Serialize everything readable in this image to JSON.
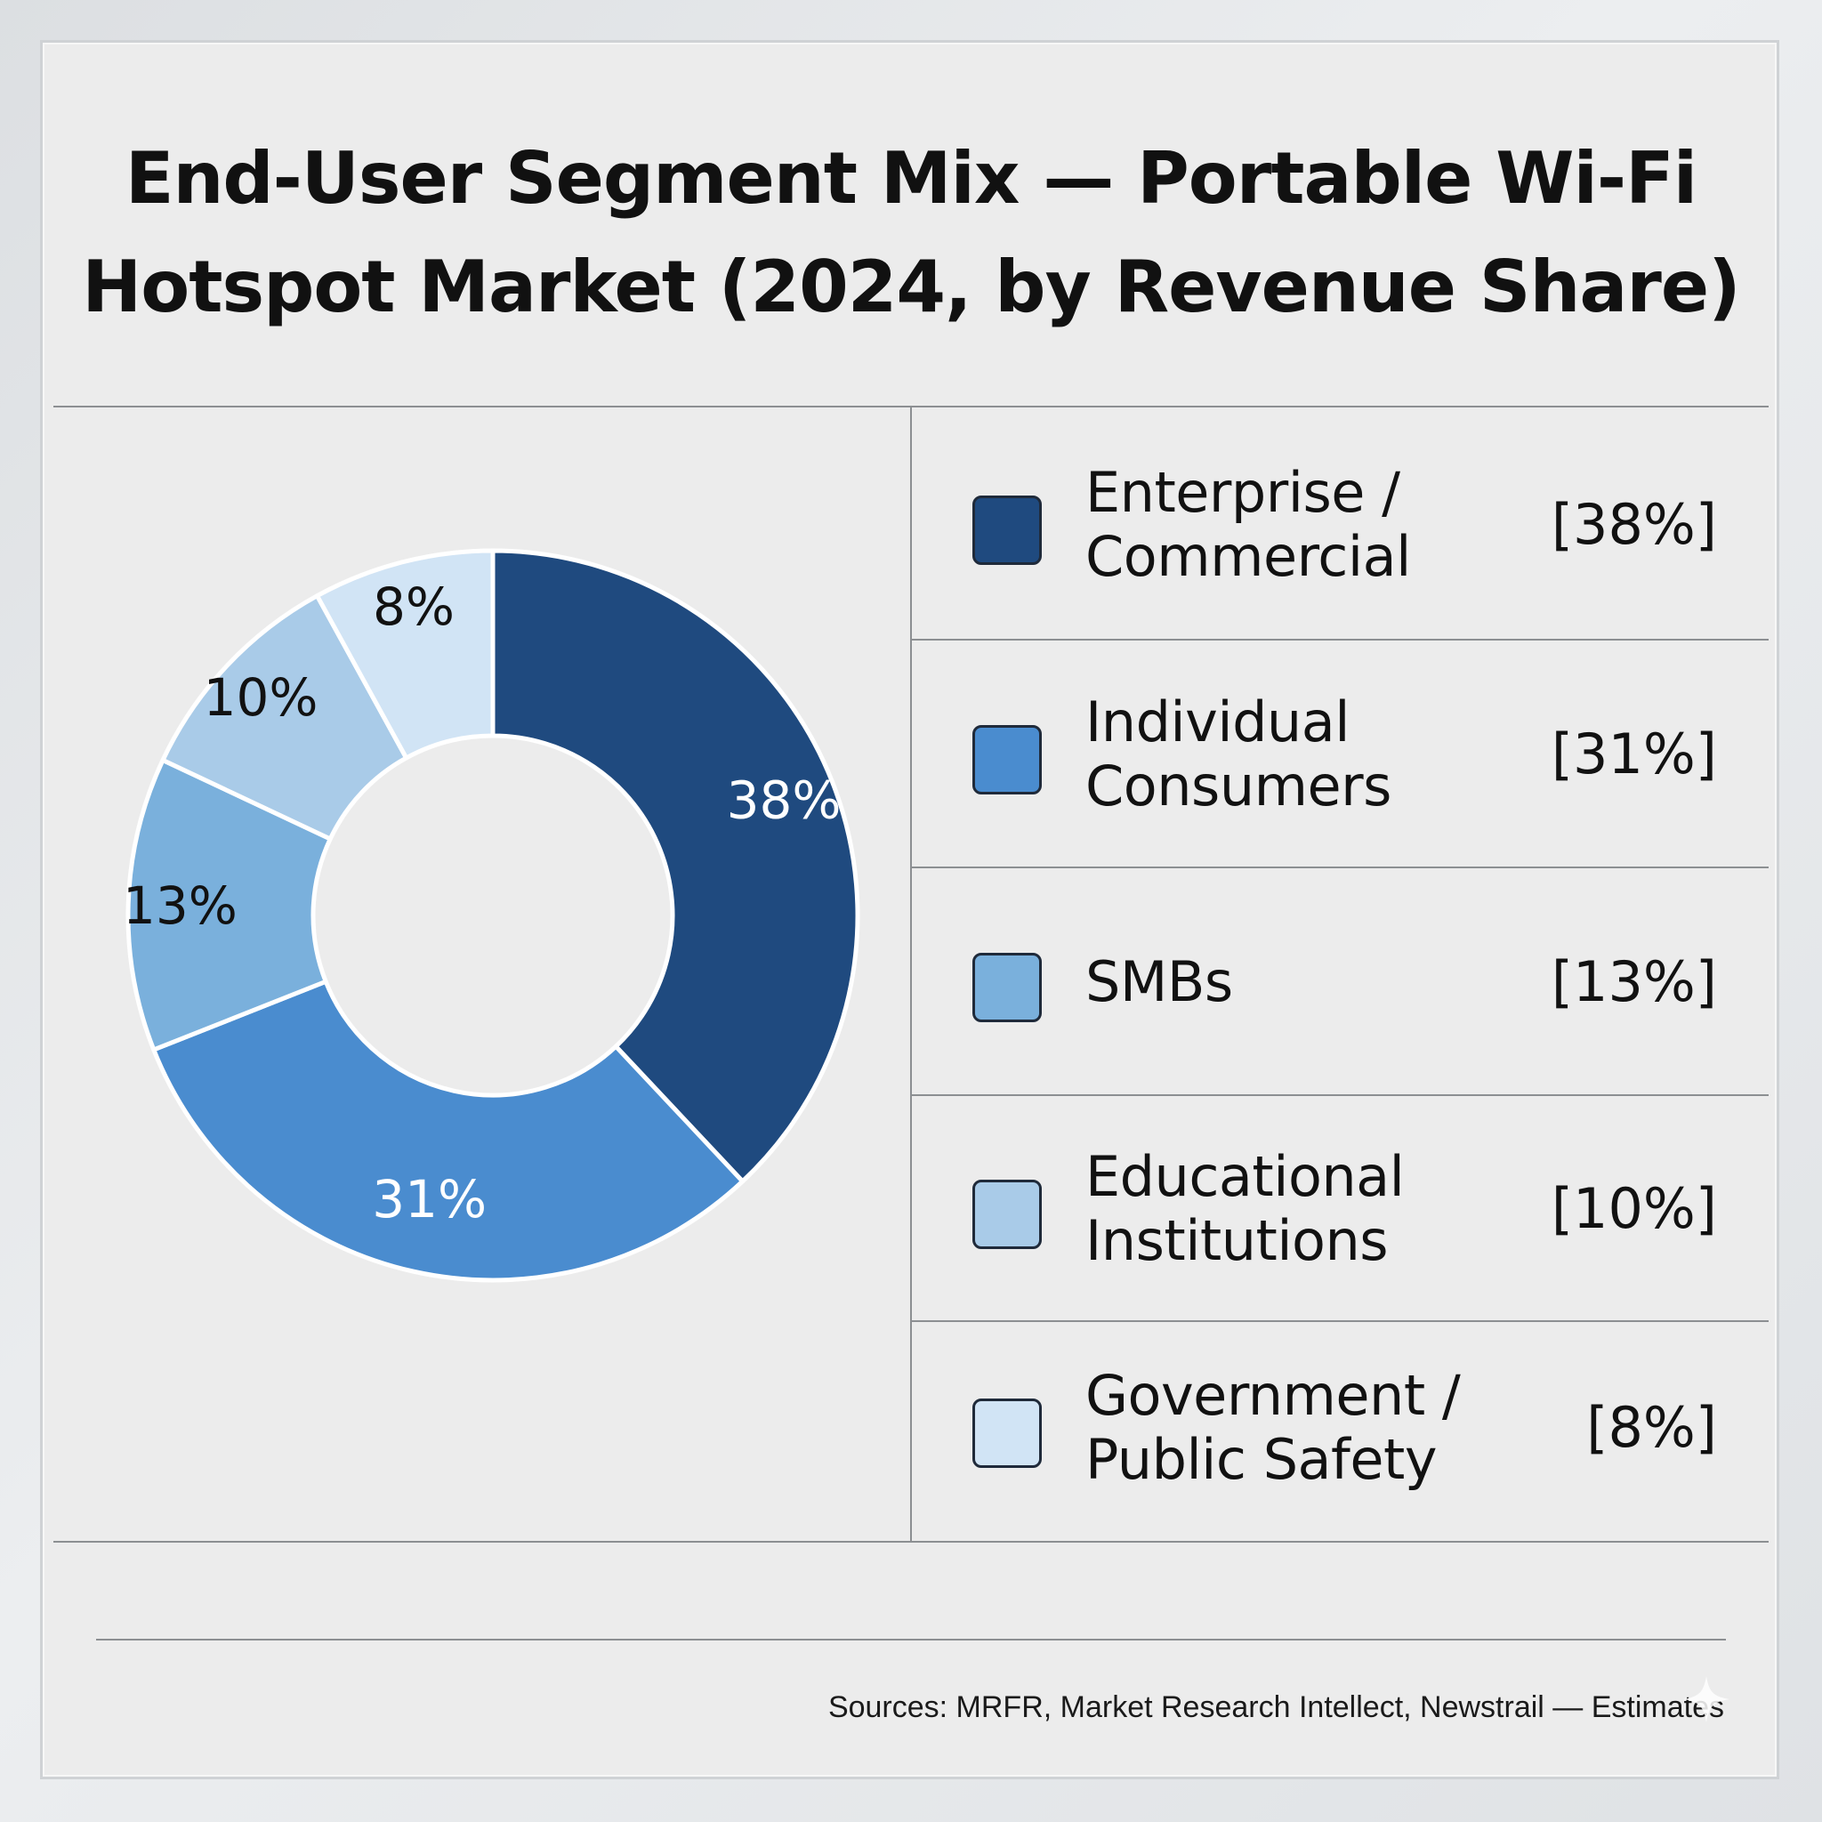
{
  "title_lines": [
    "End-User Segment Mix — Portable Wi-Fi",
    "Hotspot Market (2024, by Revenue Share)"
  ],
  "source": "Sources: MRFR, Market Research Intellect, Newstrail — Estimates",
  "legend": [
    {
      "label": "Enterprise /\nCommercial",
      "value_text": "[38%]"
    },
    {
      "label": "Individual\nConsumers",
      "value_text": "[31%]"
    },
    {
      "label": "SMBs",
      "value_text": "[13%]"
    },
    {
      "label": "Educational\nInstitutions",
      "value_text": "[10%]"
    },
    {
      "label": "Government /\nPublic Safety",
      "value_text": "[8%]"
    }
  ],
  "chart_data": {
    "type": "pie",
    "variant": "donut",
    "title": "End-User Segment Mix — Portable Wi-Fi Hotspot Market (2024, by Revenue Share)",
    "categories": [
      "Enterprise / Commercial",
      "Individual Consumers",
      "SMBs",
      "Educational Institutions",
      "Government / Public Safety"
    ],
    "values": [
      38,
      31,
      13,
      10,
      8
    ],
    "slice_labels": [
      "38%",
      "31%",
      "13%",
      "10%",
      "8%"
    ],
    "unit": "%",
    "colors": [
      "#1f4a7f",
      "#4a8ccf",
      "#7ab0dc",
      "#a9cbe8",
      "#d1e4f5"
    ],
    "label_colors": [
      "#ffffff",
      "#ffffff",
      "#111111",
      "#111111",
      "#111111"
    ],
    "legend_position": "right"
  }
}
